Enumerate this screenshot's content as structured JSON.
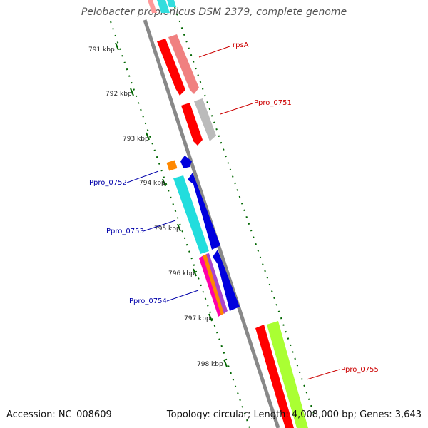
{
  "title": "Pelobacter propionicus DSM 2379, complete genome",
  "footer": {
    "accession": "Accession: NC_008609",
    "topology": "Topology: circular; Length: 4,008,000 bp; Genes: 3,643"
  },
  "ticks": [
    "791 kbp",
    "792 kbp",
    "793 kbp",
    "794 kbp",
    "795 kbp",
    "796 kbp",
    "797 kbp",
    "798 kbp"
  ],
  "gene_labels": [
    {
      "name": "rpsA",
      "strand": "forward",
      "color": "#cc0000"
    },
    {
      "name": "Ppro_0751",
      "strand": "forward",
      "color": "#cc0000"
    },
    {
      "name": "Ppro_0752",
      "strand": "reverse",
      "color": "#0000aa"
    },
    {
      "name": "Ppro_0753",
      "strand": "reverse",
      "color": "#0000aa"
    },
    {
      "name": "Ppro_0754",
      "strand": "reverse",
      "color": "#0000aa"
    },
    {
      "name": "Ppro_0755",
      "strand": "forward",
      "color": "#cc0000"
    }
  ],
  "colors": {
    "backbone": "#888888",
    "forward_cds": "#ff0000",
    "reverse_cds": "#0000dd",
    "tick": "#006600",
    "forward_label": "#cc0000",
    "reverse_label": "#0000aa"
  }
}
